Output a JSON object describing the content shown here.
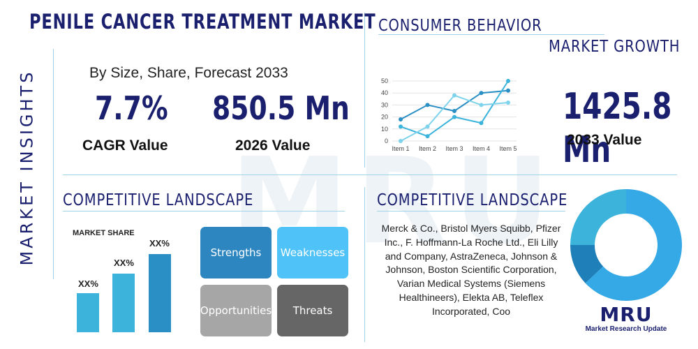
{
  "title": "PENILE CANCER TREATMENT MARKET",
  "side_label": "MARKET INSIGHTS",
  "subtitle": "By Size, Share, Forecast 2033",
  "cagr": {
    "value": "7.7%",
    "label": "CAGR Value"
  },
  "value_2026": {
    "value": "850.5 Mn",
    "label": "2026 Value"
  },
  "consumer": {
    "title": "CONSUMER BEHAVIOR"
  },
  "growth": {
    "title": "MARKET GROWTH",
    "value": "1425.8 Mn",
    "label": "2033 Value"
  },
  "landscape_left": {
    "title": "COMPETITIVE LANDSCAPE"
  },
  "landscape_right": {
    "title": "COMPETITIVE LANDSCAPE"
  },
  "market_share": {
    "title": "MARKET SHARE",
    "bar_labels": [
      "XX%",
      "XX%",
      "XX%"
    ]
  },
  "swot": {
    "strengths": "Strengths",
    "weaknesses": "Weaknesses",
    "opportunities": "Opportunities",
    "threats": "Threats"
  },
  "players": "Merck & Co., Bristol Myers Squibb, Pfizer Inc., F. Hoffmann-La Roche Ltd., Eli Lilly and Company, AstraZeneca, Johnson & Johnson, Boston Scientific Corporation, Varian Medical Systems (Siemens Healthineers), Elekta AB, Teleflex Incorporated, Coo",
  "logo": {
    "mark": "MRU",
    "text": "Market Research Update"
  },
  "colors": {
    "navy": "#1a1f6e",
    "accent": "#3bb3db",
    "dark_blue": "#2a8fc5",
    "light_blue": "#4fc3f7",
    "gray": "#a6a6a6",
    "dark_gray": "#666666"
  },
  "chart_data": [
    {
      "type": "line",
      "categories": [
        "Item 1",
        "Item 2",
        "Item 3",
        "Item 4",
        "Item 5"
      ],
      "ylim": [
        0,
        50
      ],
      "yticks": [
        0,
        10,
        20,
        30,
        40,
        50
      ],
      "series": [
        {
          "values": [
            18,
            30,
            25,
            40,
            42
          ]
        },
        {
          "values": [
            12,
            4,
            20,
            15,
            50
          ]
        },
        {
          "values": [
            0,
            12,
            38,
            30,
            32
          ]
        }
      ]
    },
    {
      "type": "pie",
      "donut": true,
      "values": [
        12,
        25,
        63
      ]
    }
  ]
}
